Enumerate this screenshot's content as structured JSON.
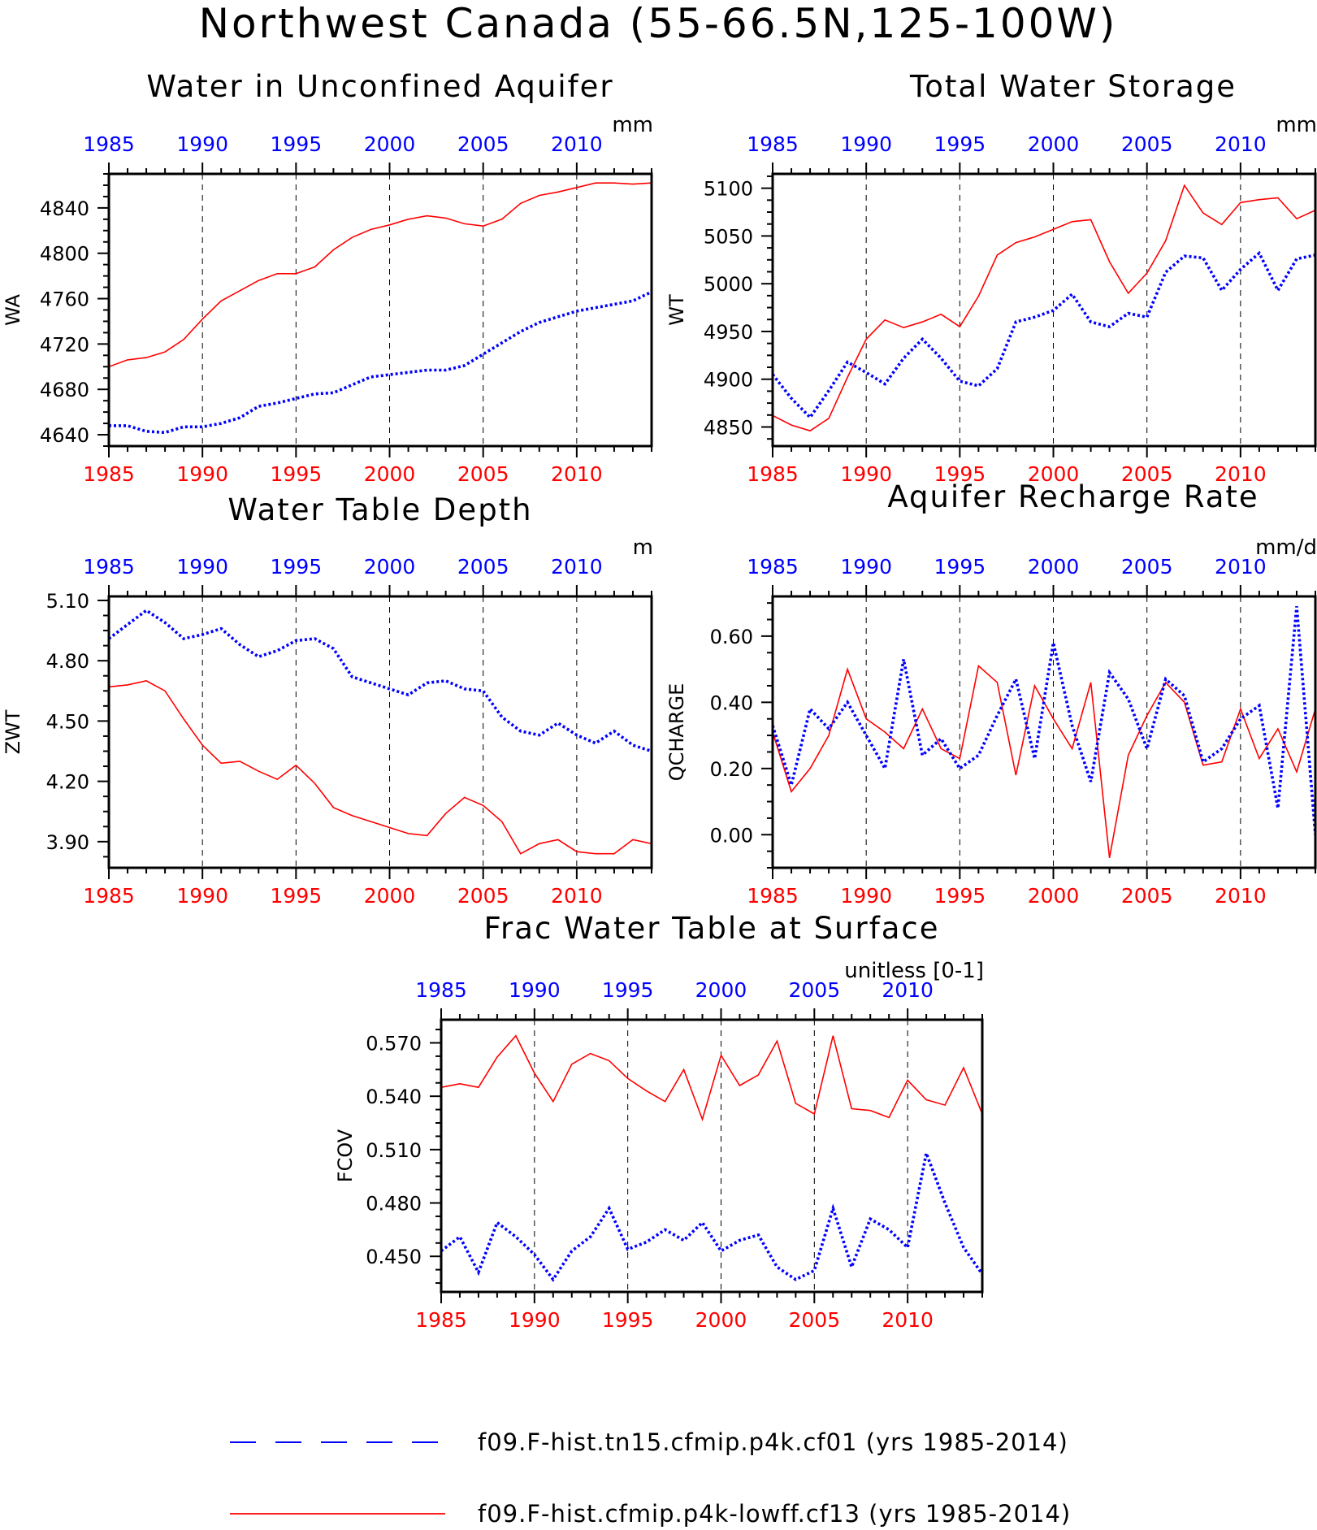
{
  "figure": {
    "title": "Northwest Canada (55-66.5N,125-100W)"
  },
  "legend": [
    {
      "label": "f09.F-hist.tn15.cfmip.p4k.cf01 (yrs 1985-2014)",
      "color": "#0000ff",
      "style": "dashed"
    },
    {
      "label": "f09.F-hist.cfmip.p4k-lowff.cf13 (yrs 1985-2014)",
      "color": "#ff0000",
      "style": "solid"
    }
  ],
  "colors": {
    "series_red": "#ff0000",
    "series_blue": "#0000ff",
    "axis": "#000000",
    "grid": "#000000"
  },
  "chart_data": [
    {
      "type": "line",
      "title": "Water in Unconfined Aquifer",
      "ylabel": "WA",
      "units": "mm",
      "xlim": [
        1985,
        2014
      ],
      "ylim": [
        4630,
        4870
      ],
      "yticks": [
        4640,
        4680,
        4720,
        4760,
        4800,
        4840
      ],
      "ytick_decimals": 0,
      "xticks": [
        1985,
        1990,
        1995,
        2000,
        2005,
        2010
      ],
      "x": [
        1985,
        1986,
        1987,
        1988,
        1989,
        1990,
        1991,
        1992,
        1993,
        1994,
        1995,
        1996,
        1997,
        1998,
        1999,
        2000,
        2001,
        2002,
        2003,
        2004,
        2005,
        2006,
        2007,
        2008,
        2009,
        2010,
        2011,
        2012,
        2013,
        2014
      ],
      "series": [
        {
          "key": "lowff",
          "color": "#ff0000",
          "values": [
            4700,
            4706,
            4708,
            4713,
            4724,
            4742,
            4758,
            4767,
            4776,
            4782,
            4782,
            4788,
            4803,
            4814,
            4821,
            4825,
            4830,
            4833,
            4831,
            4826,
            4824,
            4830,
            4844,
            4851,
            4854,
            4858,
            4862,
            4862,
            4861,
            4862
          ]
        },
        {
          "key": "p4k",
          "color": "#0000ff",
          "values": [
            4648,
            4648,
            4643,
            4642,
            4647,
            4647,
            4650,
            4655,
            4665,
            4668,
            4672,
            4676,
            4677,
            4684,
            4691,
            4693,
            4695,
            4697,
            4697,
            4701,
            4711,
            4721,
            4731,
            4739,
            4744,
            4749,
            4752,
            4755,
            4758,
            4766
          ]
        }
      ]
    },
    {
      "type": "line",
      "title": "Total Water Storage",
      "ylabel": "WT",
      "units": "mm",
      "xlim": [
        1985,
        2014
      ],
      "ylim": [
        4830,
        5115
      ],
      "yticks": [
        4850,
        4900,
        4950,
        5000,
        5050,
        5100
      ],
      "ytick_decimals": 0,
      "xticks": [
        1985,
        1990,
        1995,
        2000,
        2005,
        2010
      ],
      "x": [
        1985,
        1986,
        1987,
        1988,
        1989,
        1990,
        1991,
        1992,
        1993,
        1994,
        1995,
        1996,
        1997,
        1998,
        1999,
        2000,
        2001,
        2002,
        2003,
        2004,
        2005,
        2006,
        2007,
        2008,
        2009,
        2010,
        2011,
        2012,
        2013,
        2014
      ],
      "series": [
        {
          "key": "lowff",
          "color": "#ff0000",
          "values": [
            4862,
            4852,
            4846,
            4859,
            4902,
            4942,
            4962,
            4954,
            4960,
            4968,
            4955,
            4987,
            5030,
            5043,
            5049,
            5057,
            5065,
            5067,
            5023,
            4990,
            5011,
            5045,
            5103,
            5074,
            5062,
            5085,
            5088,
            5090,
            5068,
            5077
          ]
        },
        {
          "key": "p4k",
          "color": "#0000ff",
          "values": [
            4905,
            4880,
            4860,
            4888,
            4918,
            4907,
            4895,
            4922,
            4942,
            4922,
            4898,
            4893,
            4911,
            4960,
            4965,
            4972,
            4989,
            4960,
            4955,
            4969,
            4965,
            5012,
            5029,
            5027,
            4993,
            5015,
            5032,
            4993,
            5026,
            5030
          ]
        }
      ]
    },
    {
      "type": "line",
      "title": "Water Table Depth",
      "ylabel": "ZWT",
      "units": "m",
      "xlim": [
        1985,
        2014
      ],
      "ylim": [
        3.77,
        5.12
      ],
      "yticks": [
        3.9,
        4.2,
        4.5,
        4.8,
        5.1
      ],
      "ytick_decimals": 2,
      "xticks": [
        1985,
        1990,
        1995,
        2000,
        2005,
        2010
      ],
      "x": [
        1985,
        1986,
        1987,
        1988,
        1989,
        1990,
        1991,
        1992,
        1993,
        1994,
        1995,
        1996,
        1997,
        1998,
        1999,
        2000,
        2001,
        2002,
        2003,
        2004,
        2005,
        2006,
        2007,
        2008,
        2009,
        2010,
        2011,
        2012,
        2013,
        2014
      ],
      "series": [
        {
          "key": "lowff",
          "color": "#ff0000",
          "values": [
            4.67,
            4.68,
            4.7,
            4.65,
            4.51,
            4.38,
            4.29,
            4.3,
            4.25,
            4.21,
            4.28,
            4.19,
            4.07,
            4.03,
            4.0,
            3.97,
            3.94,
            3.93,
            4.04,
            4.12,
            4.08,
            4.0,
            3.84,
            3.89,
            3.91,
            3.85,
            3.84,
            3.84,
            3.91,
            3.89
          ]
        },
        {
          "key": "p4k",
          "color": "#0000ff",
          "values": [
            4.91,
            4.98,
            5.05,
            4.99,
            4.91,
            4.93,
            4.96,
            4.88,
            4.82,
            4.85,
            4.9,
            4.91,
            4.86,
            4.72,
            4.69,
            4.66,
            4.63,
            4.69,
            4.7,
            4.66,
            4.65,
            4.52,
            4.45,
            4.43,
            4.49,
            4.43,
            4.39,
            4.45,
            4.38,
            4.35
          ]
        }
      ]
    },
    {
      "type": "line",
      "title": "Aquifer Recharge Rate",
      "ylabel": "QCHARGE",
      "units": "mm/d",
      "xlim": [
        1985,
        2014
      ],
      "ylim": [
        -0.1,
        0.72
      ],
      "yticks": [
        0.0,
        0.2,
        0.4,
        0.6
      ],
      "ytick_decimals": 2,
      "xticks": [
        1985,
        1990,
        1995,
        2000,
        2005,
        2010
      ],
      "x": [
        1985,
        1986,
        1987,
        1988,
        1989,
        1990,
        1991,
        1992,
        1993,
        1994,
        1995,
        1996,
        1997,
        1998,
        1999,
        2000,
        2001,
        2002,
        2003,
        2004,
        2005,
        2006,
        2007,
        2008,
        2009,
        2010,
        2011,
        2012,
        2013,
        2014
      ],
      "series": [
        {
          "key": "lowff",
          "color": "#ff0000",
          "values": [
            0.31,
            0.13,
            0.2,
            0.3,
            0.5,
            0.35,
            0.31,
            0.26,
            0.38,
            0.26,
            0.23,
            0.51,
            0.46,
            0.18,
            0.45,
            0.35,
            0.26,
            0.46,
            -0.07,
            0.24,
            0.36,
            0.46,
            0.4,
            0.21,
            0.22,
            0.38,
            0.23,
            0.32,
            0.19,
            0.38
          ]
        },
        {
          "key": "p4k",
          "color": "#0000ff",
          "values": [
            0.33,
            0.15,
            0.38,
            0.32,
            0.4,
            0.3,
            0.2,
            0.53,
            0.24,
            0.29,
            0.2,
            0.24,
            0.36,
            0.47,
            0.23,
            0.58,
            0.33,
            0.16,
            0.49,
            0.41,
            0.26,
            0.47,
            0.42,
            0.22,
            0.26,
            0.35,
            0.39,
            0.08,
            0.69,
            0.0
          ]
        }
      ]
    },
    {
      "type": "line",
      "title": "Frac Water Table at Surface",
      "ylabel": "FCOV",
      "units": "unitless [0-1]",
      "xlim": [
        1985,
        2014
      ],
      "ylim": [
        0.43,
        0.583
      ],
      "yticks": [
        0.45,
        0.48,
        0.51,
        0.54,
        0.57
      ],
      "ytick_decimals": 3,
      "xticks": [
        1985,
        1990,
        1995,
        2000,
        2005,
        2010
      ],
      "x": [
        1985,
        1986,
        1987,
        1988,
        1989,
        1990,
        1991,
        1992,
        1993,
        1994,
        1995,
        1996,
        1997,
        1998,
        1999,
        2000,
        2001,
        2002,
        2003,
        2004,
        2005,
        2006,
        2007,
        2008,
        2009,
        2010,
        2011,
        2012,
        2013,
        2014
      ],
      "series": [
        {
          "key": "lowff",
          "color": "#ff0000",
          "values": [
            0.545,
            0.547,
            0.545,
            0.562,
            0.574,
            0.553,
            0.537,
            0.558,
            0.564,
            0.56,
            0.55,
            0.543,
            0.537,
            0.555,
            0.527,
            0.563,
            0.546,
            0.552,
            0.571,
            0.536,
            0.53,
            0.574,
            0.533,
            0.532,
            0.528,
            0.549,
            0.538,
            0.535,
            0.556,
            0.53
          ]
        },
        {
          "key": "p4k",
          "color": "#0000ff",
          "values": [
            0.453,
            0.461,
            0.441,
            0.469,
            0.461,
            0.451,
            0.437,
            0.453,
            0.461,
            0.477,
            0.454,
            0.458,
            0.465,
            0.459,
            0.469,
            0.453,
            0.459,
            0.462,
            0.444,
            0.437,
            0.442,
            0.477,
            0.444,
            0.471,
            0.465,
            0.455,
            0.508,
            0.48,
            0.455,
            0.44
          ]
        }
      ]
    }
  ]
}
